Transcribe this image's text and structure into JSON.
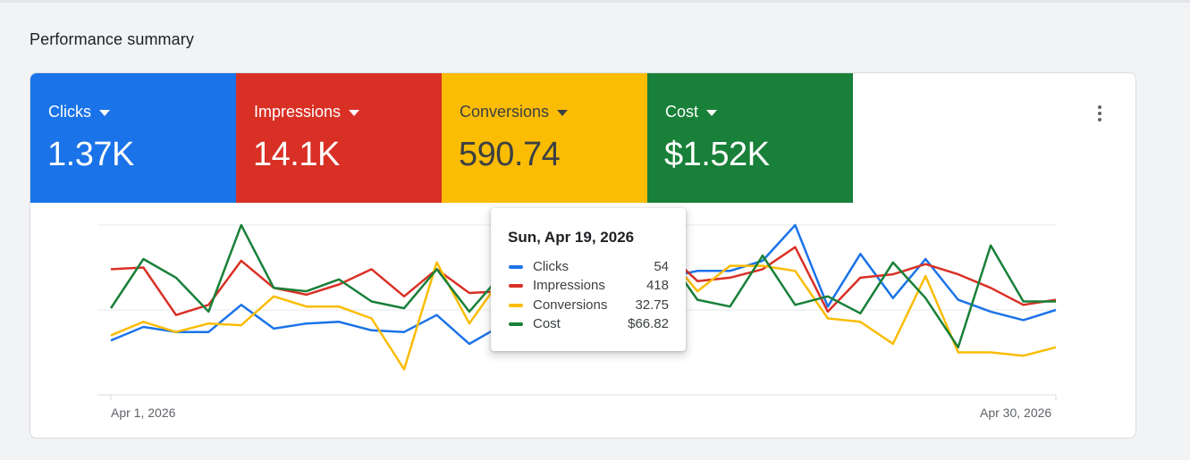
{
  "section": {
    "title": "Performance summary"
  },
  "metrics": [
    {
      "label": "Clicks",
      "value": "1.37K",
      "color": "#1a73e8"
    },
    {
      "label": "Impressions",
      "value": "14.1K",
      "color": "#d93025"
    },
    {
      "label": "Conversions",
      "value": "590.74",
      "color": "#fbbc04"
    },
    {
      "label": "Cost",
      "value": "$1.52K",
      "color": "#188038"
    }
  ],
  "menu": {
    "icon": "more-vert-icon"
  },
  "chart_data": {
    "type": "line",
    "x_start_label": "Apr 1, 2026",
    "x_end_label": "Apr 30, 2026",
    "grid": true,
    "normalized_per_series": true,
    "series": [
      {
        "name": "Clicks",
        "color": "#1a73e8",
        "values": [
          0.32,
          0.4,
          0.37,
          0.37,
          0.53,
          0.39,
          0.42,
          0.43,
          0.38,
          0.37,
          0.47,
          0.3,
          0.41,
          0.48,
          0.6,
          0.79,
          0.51,
          0.69,
          0.73,
          0.73,
          0.79,
          1.0,
          0.52,
          0.83,
          0.57,
          0.8,
          0.56,
          0.49,
          0.44,
          0.5
        ]
      },
      {
        "name": "Impressions",
        "color": "#d93025",
        "values": [
          0.74,
          0.75,
          0.47,
          0.53,
          0.79,
          0.63,
          0.59,
          0.65,
          0.74,
          0.58,
          0.74,
          0.6,
          0.61,
          0.64,
          0.58,
          0.88,
          0.53,
          0.85,
          0.67,
          0.69,
          0.74,
          0.87,
          0.49,
          0.69,
          0.71,
          0.77,
          0.71,
          0.63,
          0.53,
          0.56
        ]
      },
      {
        "name": "Conversions",
        "color": "#fbbc04",
        "values": [
          0.35,
          0.43,
          0.37,
          0.42,
          0.41,
          0.58,
          0.52,
          0.52,
          0.45,
          0.15,
          0.78,
          0.42,
          0.69,
          0.7,
          0.57,
          0.86,
          0.8,
          0.84,
          0.61,
          0.76,
          0.76,
          0.73,
          0.45,
          0.43,
          0.3,
          0.7,
          0.25,
          0.25,
          0.23,
          0.28
        ]
      },
      {
        "name": "Cost",
        "color": "#188038",
        "values": [
          0.51,
          0.8,
          0.69,
          0.49,
          1.0,
          0.63,
          0.61,
          0.68,
          0.55,
          0.51,
          0.74,
          0.49,
          0.71,
          0.75,
          0.47,
          0.56,
          0.64,
          0.83,
          0.56,
          0.52,
          0.82,
          0.53,
          0.58,
          0.48,
          0.78,
          0.57,
          0.28,
          0.88,
          0.55,
          0.55
        ]
      }
    ]
  },
  "tooltip": {
    "title": "Sun, Apr 19, 2026",
    "rows": [
      {
        "name": "Clicks",
        "value": "54",
        "color": "#1a73e8"
      },
      {
        "name": "Impressions",
        "value": "418",
        "color": "#d93025"
      },
      {
        "name": "Conversions",
        "value": "32.75",
        "color": "#fbbc04"
      },
      {
        "name": "Cost",
        "value": "$66.82",
        "color": "#188038"
      }
    ]
  }
}
